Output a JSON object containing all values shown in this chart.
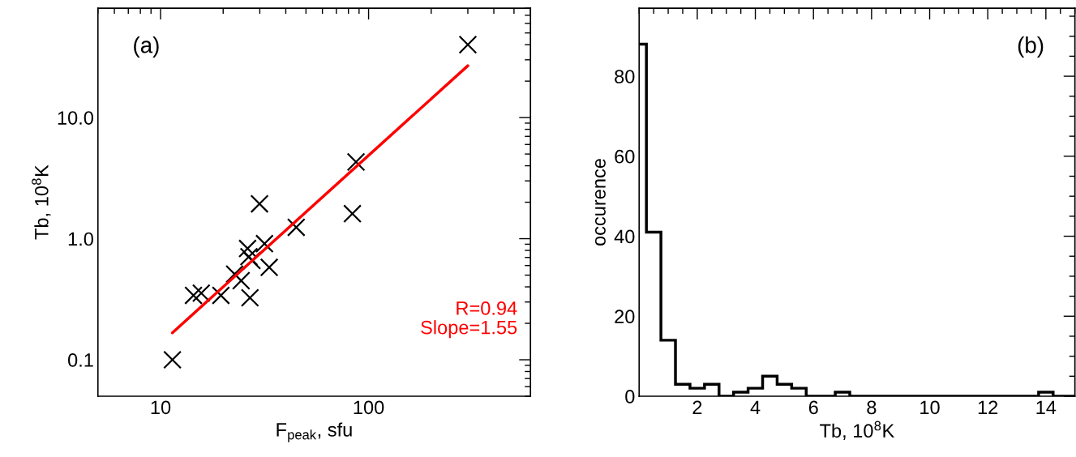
{
  "chart_data": [
    {
      "type": "scatter",
      "xlabel": "F$_{peak}$, sfu",
      "ylabel": "Tb, 10$^{8}$K",
      "log": "xy",
      "xlim": [
        5,
        600
      ],
      "xticks": [
        10,
        100
      ],
      "ylim": [
        0.05,
        80
      ],
      "yticks": [
        0.1,
        {
          "value": 1,
          "label": "1.0"
        },
        {
          "value": 10,
          "label": "10.0"
        }
      ],
      "annotations": [
        "(a)",
        "R=0.94",
        "Slope=1.55"
      ],
      "series": [
        {
          "type": "scatter",
          "marker": "cross",
          "color": "#000000",
          "x": [
            300,
            87,
            29.9,
            83.6,
            44.9,
            31.6,
            26.2,
            26.6,
            27.5,
            33.3,
            22.7,
            24.4,
            26.9,
            14.4,
            15.7,
            19.5,
            11.4
          ],
          "values": [
            40,
            4.3,
            1.94,
            1.61,
            1.24,
            0.91,
            0.83,
            0.71,
            0.66,
            0.58,
            0.51,
            0.45,
            0.325,
            0.34,
            0.355,
            0.34,
            0.1
          ]
        },
        {
          "type": "line",
          "color": "#ff0000",
          "x": [
            11.4,
            300
          ],
          "values": [
            0.167,
            26.8
          ]
        }
      ]
    },
    {
      "type": "histogram",
      "xlabel": "Tb, 10$^{8}$K",
      "ylabel": "occurence",
      "color": "#000000",
      "xlim": [
        0,
        15
      ],
      "xticks": [
        2,
        4,
        6,
        8,
        10,
        12,
        14
      ],
      "ylim": [
        0,
        97
      ],
      "yticks": [
        0,
        20,
        40,
        60,
        80
      ],
      "annotations": [
        "(b)"
      ],
      "bins": [
        0,
        0.25,
        0.75,
        1.25,
        1.75,
        2.25,
        2.75,
        3.25,
        3.75,
        4.25,
        4.75,
        5.25,
        5.75,
        6.25,
        6.75,
        7.25,
        7.75,
        8.25,
        8.75,
        9.25,
        9.75,
        10.25,
        10.75,
        11.25,
        11.75,
        12.25,
        12.75,
        13.25,
        13.75,
        14.25,
        14.75,
        15
      ],
      "values": [
        88,
        41,
        14,
        3,
        2,
        3,
        0,
        1,
        2,
        5,
        3,
        2,
        0,
        0,
        1,
        0,
        0,
        0,
        0,
        0,
        0,
        0,
        0,
        0,
        0,
        0,
        0,
        0,
        1,
        0,
        0
      ]
    }
  ]
}
